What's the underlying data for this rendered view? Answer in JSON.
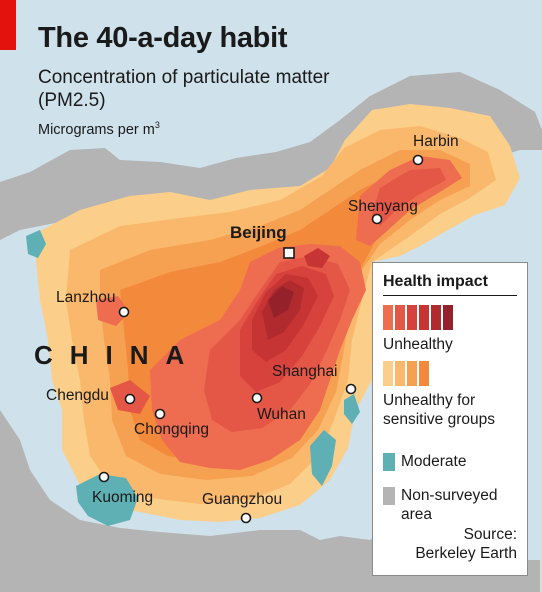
{
  "title": "The 40-a-day habit",
  "subtitle": "Concentration of particulate matter (PM2.5)",
  "unit": {
    "base": "Micrograms per m",
    "exponent": "3"
  },
  "country_label": "CHINA",
  "cities": {
    "harbin": "Harbin",
    "shenyang": "Shenyang",
    "beijing": "Beijing",
    "lanzhou": "Lanzhou",
    "shanghai": "Shanghai",
    "chengdu": "Chengdu",
    "chongqing": "Chongqing",
    "wuhan": "Wuhan",
    "kuoming": "Kuoming",
    "guangzhou": "Guangzhou"
  },
  "legend": {
    "title": "Health impact",
    "unhealthy": {
      "label": "Unhealthy",
      "colors": [
        "#ee6c4f",
        "#e45646",
        "#d8423c",
        "#c73434",
        "#b02a2e",
        "#95222a"
      ]
    },
    "sensitive": {
      "label": "Unhealthy for sensitive groups",
      "colors": [
        "#fbcf8a",
        "#f9b86c",
        "#f6a151",
        "#f38a3b"
      ]
    },
    "moderate": {
      "label": "Moderate",
      "color": "#5fb0b4"
    },
    "non_surveyed": {
      "label": "Non-surveyed area",
      "color": "#b4b4b4"
    },
    "source": "Source: Berkeley Earth"
  },
  "colors": {
    "sea": "#cfe1ea",
    "land_other": "#b4b4b4",
    "brand_red": "#e3120b"
  }
}
